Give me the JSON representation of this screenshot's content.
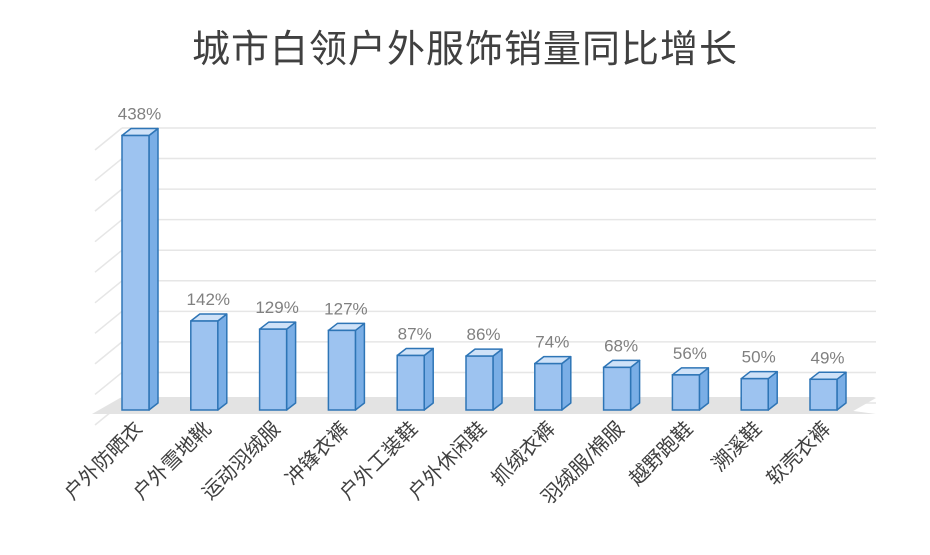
{
  "chart_data": {
    "type": "bar",
    "title": "城市白领户外服饰销量同比增长",
    "categories": [
      "户外防晒衣",
      "户外雪地靴",
      "运动羽绒服",
      "冲锋衣裤",
      "户外工装鞋",
      "户外休闲鞋",
      "抓绒衣裤",
      "羽绒服/棉服",
      "越野跑鞋",
      "溯溪鞋",
      "软壳衣裤"
    ],
    "values": [
      438,
      142,
      129,
      127,
      87,
      86,
      74,
      68,
      56,
      50,
      49
    ],
    "value_labels": [
      "438%",
      "142%",
      "129%",
      "127%",
      "87%",
      "86%",
      "74%",
      "68%",
      "56%",
      "50%",
      "49%"
    ],
    "ylim": [
      0,
      450
    ],
    "grid": true,
    "style": "3d-column",
    "colors": {
      "bar_fill": "#9dc3f0",
      "bar_stroke": "#2e75b6",
      "bar_top": "#cfe2f8",
      "bar_side": "#7aaee6",
      "floor": "#e3e3e3",
      "grid": "#e6e6e6"
    }
  }
}
